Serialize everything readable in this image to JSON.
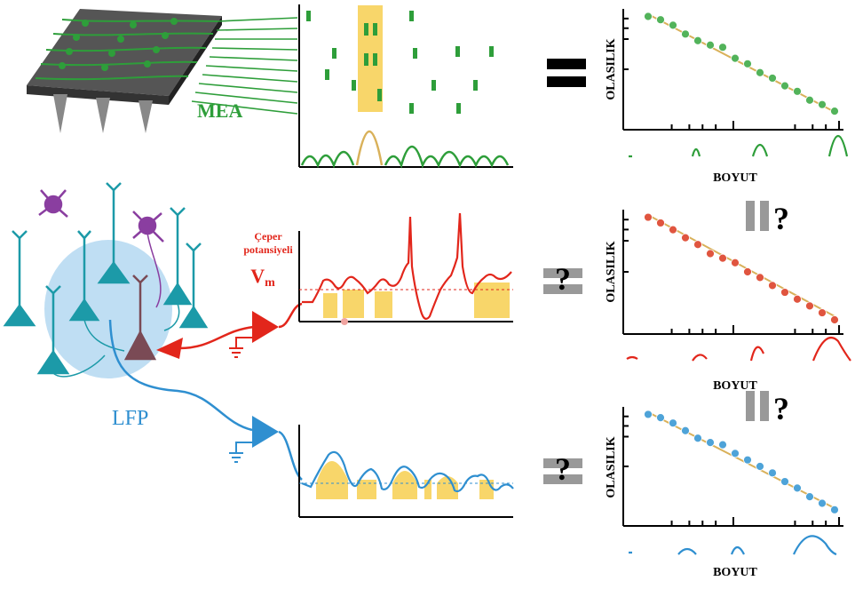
{
  "labels": {
    "mea": "MEA",
    "lfp": "LFP",
    "membrane_line1": "Çeper",
    "membrane_line2": "potansiyeli",
    "vm": "V",
    "vm_sub": "m",
    "y_axis": "OLASILIK",
    "x_axis": "BOYUT",
    "equals": "=",
    "question": "?"
  },
  "colors": {
    "mea_green": "#2e9e3a",
    "vm_red": "#e2261b",
    "lfp_blue": "#2f8fd0",
    "highlight": "#f8d66a",
    "fit_line": "#d9b15a",
    "neuron_teal": "#1c9aa8",
    "interneuron_purple": "#8a3ea0",
    "volume_blue": "#a9d3ef"
  },
  "chart_data": [
    {
      "type": "scatter",
      "scale": "log-log",
      "xlabel": "BOYUT",
      "ylabel": "OLASILIK",
      "marker_color": "#52b35a",
      "trend": "decreasing",
      "y": [
        0.98,
        0.95,
        0.9,
        0.82,
        0.76,
        0.72,
        0.7,
        0.6,
        0.55,
        0.47,
        0.42,
        0.35,
        0.3,
        0.22,
        0.18,
        0.12
      ]
    },
    {
      "type": "scatter",
      "scale": "log-log",
      "xlabel": "BOYUT",
      "ylabel": "OLASILIK",
      "marker_color": "#e0553f",
      "trend": "decreasing",
      "y": [
        0.98,
        0.93,
        0.87,
        0.8,
        0.74,
        0.66,
        0.62,
        0.58,
        0.5,
        0.45,
        0.38,
        0.32,
        0.26,
        0.2,
        0.14,
        0.07
      ]
    },
    {
      "type": "scatter",
      "scale": "log-log",
      "xlabel": "BOYUT",
      "ylabel": "OLASILIK",
      "marker_color": "#4ea3d8",
      "trend": "decreasing",
      "y": [
        0.98,
        0.95,
        0.9,
        0.83,
        0.76,
        0.72,
        0.7,
        0.62,
        0.56,
        0.5,
        0.44,
        0.36,
        0.3,
        0.22,
        0.16,
        0.1
      ]
    }
  ]
}
